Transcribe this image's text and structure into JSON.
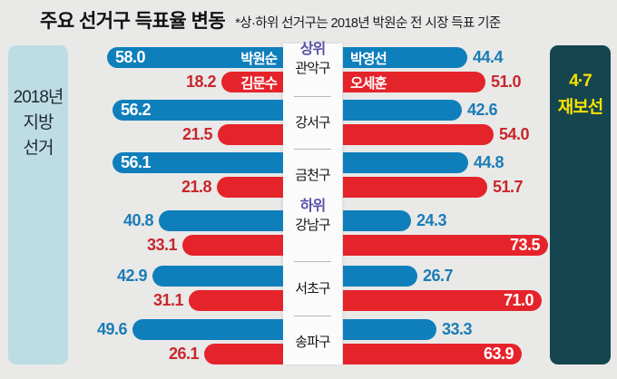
{
  "title": "주요 선거구 득표율 변동",
  "subtitle": "*상·하위 선거구는 2018년 박원순 전 시장 득표 기준",
  "era_left": {
    "lines": [
      "2018년",
      "지방",
      "선거"
    ]
  },
  "era_right": {
    "lines": [
      "4·7",
      "재보선"
    ]
  },
  "colors": {
    "background": "#E9E9E8",
    "blue_bar": "#0F7FBC",
    "red_bar": "#E5232B",
    "blue_value_text": "#1B7CB6",
    "red_value_text": "#C8262C",
    "tier_text": "#5A51A8",
    "era_left_bg": "#BEDCE4",
    "era_right_bg": "#15454E",
    "era_right_text": "#F6E100",
    "strip_bg": "#FBFBFB"
  },
  "chart_data": {
    "type": "bar",
    "orientation": "horizontal",
    "unit": "%",
    "panels": [
      {
        "id": "left",
        "label": "2018년 지방 선거"
      },
      {
        "id": "right",
        "label": "4·7 재보선"
      }
    ],
    "candidates": {
      "left_blue": "박원순",
      "left_red": "김문수",
      "right_blue": "박영선",
      "right_red": "오세훈"
    },
    "tiers": {
      "top": "상위",
      "bottom": "하위"
    },
    "districts": [
      {
        "name": "관악구",
        "tier": "상위",
        "left": {
          "blue": {
            "value": "58.0",
            "label": "박원순",
            "value_inside": true
          },
          "red": {
            "value": "18.2",
            "label": "김문수",
            "value_inside": false
          }
        },
        "right": {
          "blue": {
            "value": "44.4",
            "label": "박영선",
            "value_inside": false
          },
          "red": {
            "value": "51.0",
            "label": "오세훈",
            "value_inside": false
          }
        }
      },
      {
        "name": "강서구",
        "left": {
          "blue": {
            "value": "56.2",
            "value_inside": true
          },
          "red": {
            "value": "21.5",
            "value_inside": false
          }
        },
        "right": {
          "blue": {
            "value": "42.6",
            "value_inside": false
          },
          "red": {
            "value": "54.0",
            "value_inside": false
          }
        }
      },
      {
        "name": "금천구",
        "left": {
          "blue": {
            "value": "56.1",
            "value_inside": true
          },
          "red": {
            "value": "21.8",
            "value_inside": false
          }
        },
        "right": {
          "blue": {
            "value": "44.8",
            "value_inside": false
          },
          "red": {
            "value": "51.7",
            "value_inside": false
          }
        }
      },
      {
        "name": "강남구",
        "tier": "하위",
        "left": {
          "blue": {
            "value": "40.8",
            "value_inside": false
          },
          "red": {
            "value": "33.1",
            "value_inside": false
          }
        },
        "right": {
          "blue": {
            "value": "24.3",
            "value_inside": false
          },
          "red": {
            "value": "73.5",
            "value_inside": true
          }
        }
      },
      {
        "name": "서초구",
        "left": {
          "blue": {
            "value": "42.9",
            "value_inside": false
          },
          "red": {
            "value": "31.1",
            "value_inside": false
          }
        },
        "right": {
          "blue": {
            "value": "26.7",
            "value_inside": false
          },
          "red": {
            "value": "71.0",
            "value_inside": true
          }
        }
      },
      {
        "name": "송파구",
        "left": {
          "blue": {
            "value": "49.6",
            "value_inside": false
          },
          "red": {
            "value": "26.1",
            "value_inside": false
          }
        },
        "right": {
          "blue": {
            "value": "33.3",
            "value_inside": false
          },
          "red": {
            "value": "63.9",
            "value_inside": true
          }
        }
      }
    ]
  }
}
